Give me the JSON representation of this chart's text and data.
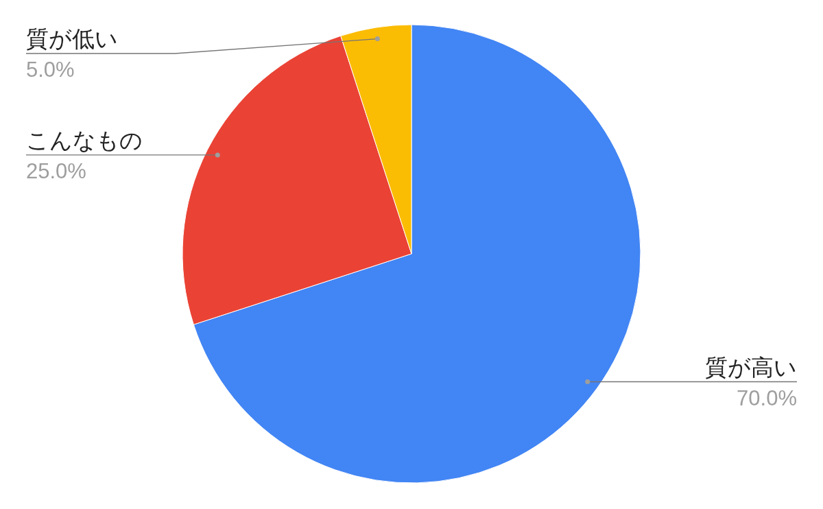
{
  "chart_data": {
    "type": "pie",
    "categories": [
      "質が高い",
      "こんなもの",
      "質が低い"
    ],
    "values": [
      70,
      25,
      5
    ],
    "colors": [
      "#4285f4",
      "#ea4335",
      "#fbbc04"
    ],
    "value_labels": [
      "70.0%",
      "25.0%",
      "5.0%"
    ]
  }
}
